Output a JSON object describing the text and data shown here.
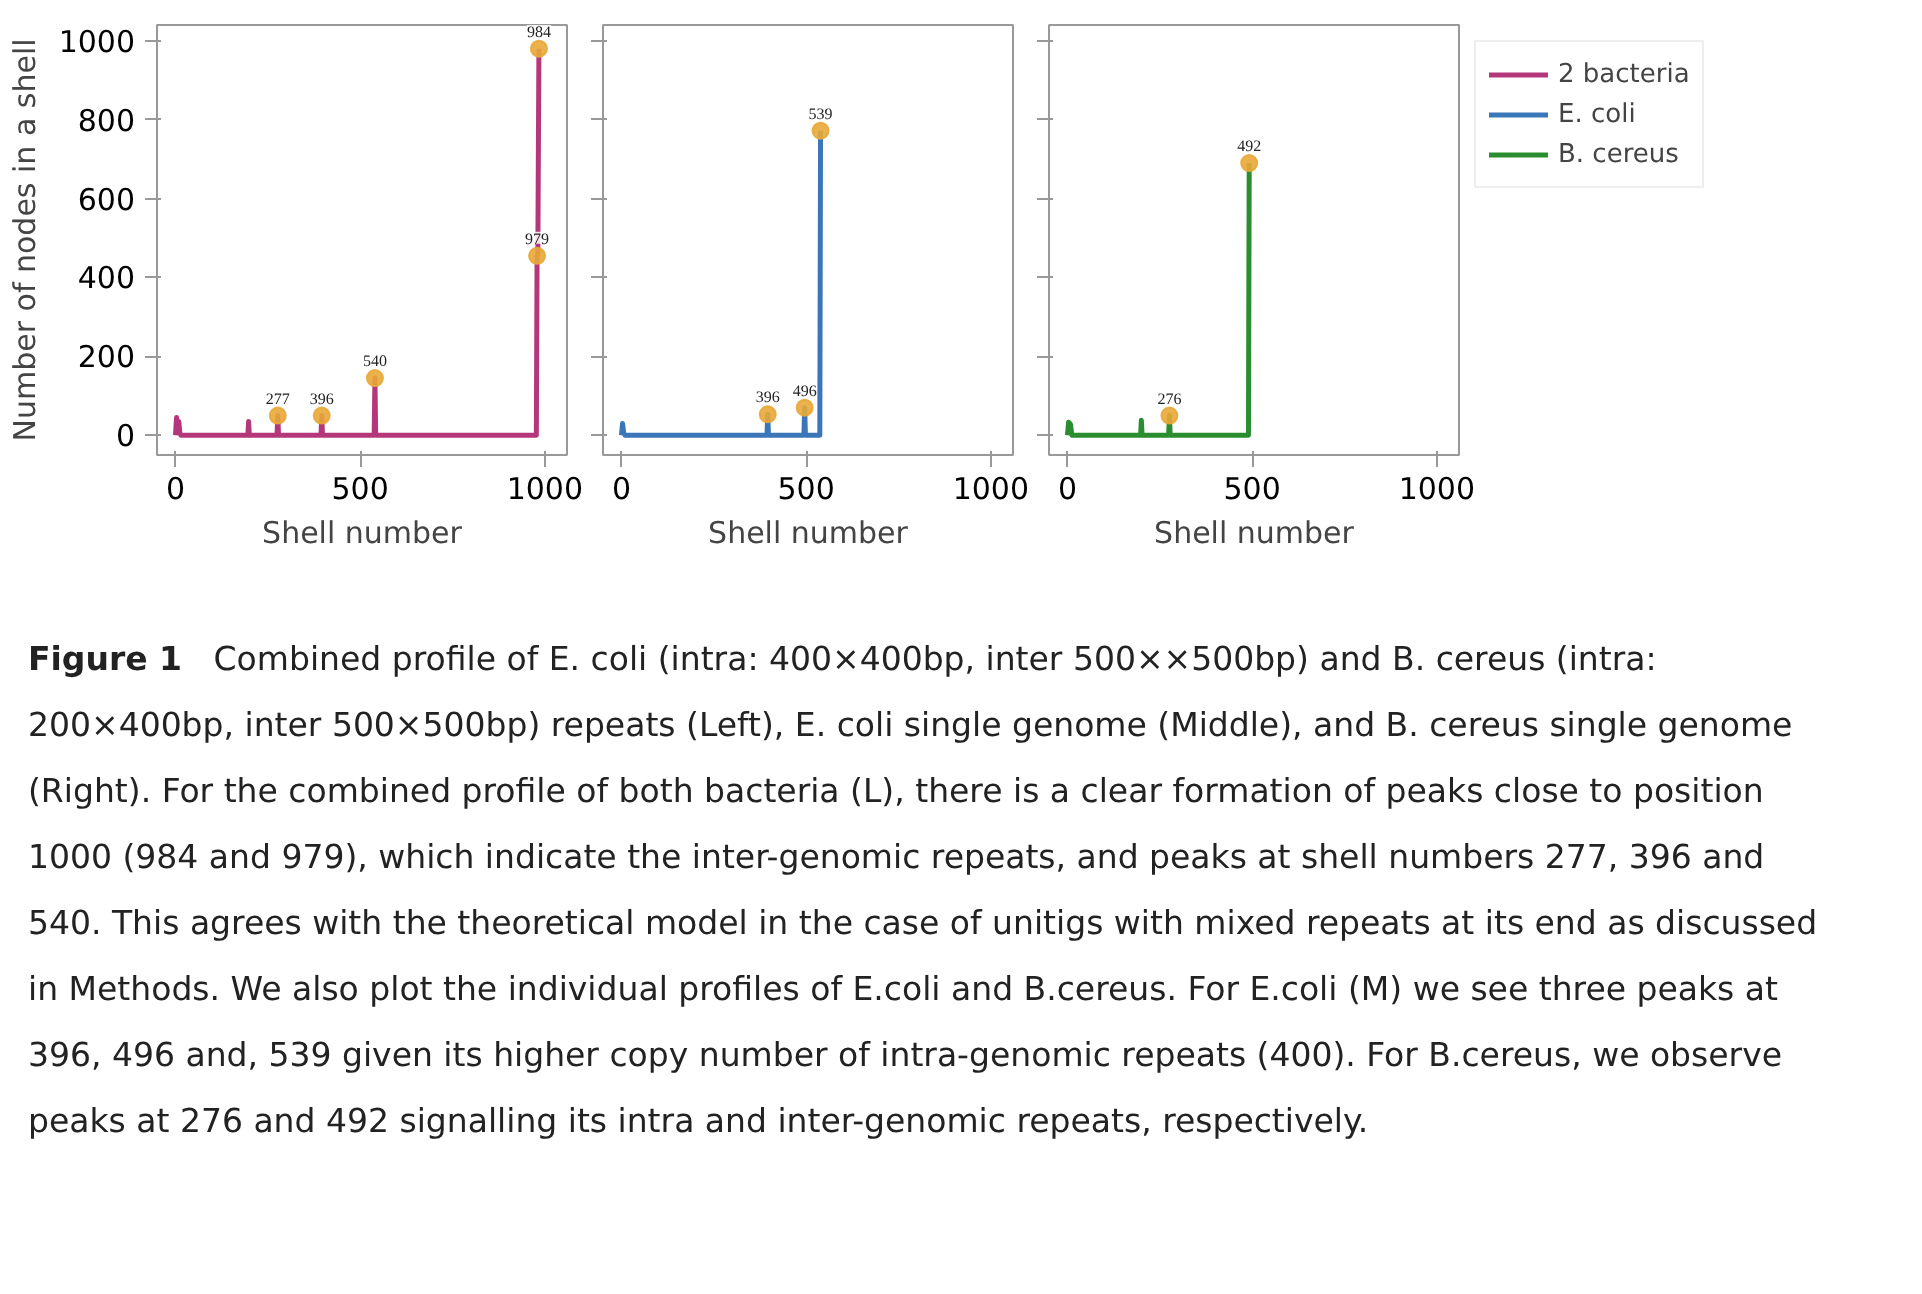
{
  "chart_data": [
    {
      "type": "line",
      "xlabel": "Shell number",
      "ylabel": "Number of nodes in a shell",
      "xlim": [
        -50,
        1060
      ],
      "ylim": [
        -50,
        1040
      ],
      "xticks": [
        0,
        500,
        1000
      ],
      "yticks": [
        0,
        200,
        400,
        600,
        800,
        1000
      ],
      "grid": false,
      "series": [
        {
          "name": "2 bacteria",
          "color": "#b5377b",
          "x": [
            0,
            3,
            6,
            9,
            12,
            15,
            196,
            198,
            200,
            275,
            277,
            279,
            394,
            396,
            398,
            538,
            540,
            542,
            977,
            979,
            981,
            984
          ],
          "values": [
            0,
            45,
            20,
            35,
            5,
            0,
            0,
            35,
            0,
            0,
            50,
            0,
            0,
            50,
            0,
            0,
            145,
            0,
            0,
            455,
            455,
            980
          ]
        }
      ],
      "annotations": [
        {
          "text": "277",
          "x": 277,
          "y": 50
        },
        {
          "text": "396",
          "x": 396,
          "y": 50
        },
        {
          "text": "540",
          "x": 540,
          "y": 145
        },
        {
          "text": "979",
          "x": 979,
          "y": 455
        },
        {
          "text": "984",
          "x": 984,
          "y": 980
        }
      ]
    },
    {
      "type": "line",
      "xlabel": "Shell number",
      "xlim": [
        -50,
        1060
      ],
      "ylim": [
        -50,
        1040
      ],
      "xticks": [
        0,
        500,
        1000
      ],
      "yticks": [
        0,
        200,
        400,
        600,
        800,
        1000
      ],
      "grid": false,
      "tick_labels": "x",
      "series": [
        {
          "name": "E. coli",
          "color": "#3a76b8",
          "x": [
            0,
            3,
            6,
            10,
            394,
            396,
            398,
            494,
            496,
            498,
            537,
            539
          ],
          "values": [
            0,
            30,
            5,
            0,
            0,
            53,
            0,
            0,
            70,
            0,
            0,
            772
          ]
        }
      ],
      "annotations": [
        {
          "text": "396",
          "x": 396,
          "y": 53
        },
        {
          "text": "496",
          "x": 496,
          "y": 70
        },
        {
          "text": "539",
          "x": 539,
          "y": 772
        }
      ]
    },
    {
      "type": "line",
      "xlabel": "Shell number",
      "xlim": [
        -50,
        1060
      ],
      "ylim": [
        -50,
        1040
      ],
      "xticks": [
        0,
        500,
        1000
      ],
      "yticks": [
        0,
        200,
        400,
        600,
        800,
        1000
      ],
      "grid": false,
      "tick_labels": "x",
      "legend": "right",
      "series": [
        {
          "name": "B. cereus",
          "color": "#2a8d2f",
          "x": [
            0,
            3,
            8,
            12,
            198,
            200,
            202,
            274,
            276,
            278,
            490,
            492
          ],
          "values": [
            0,
            33,
            28,
            0,
            0,
            38,
            0,
            0,
            50,
            0,
            0,
            690
          ]
        }
      ],
      "annotations": [
        {
          "text": "276",
          "x": 276,
          "y": 50
        },
        {
          "text": "492",
          "x": 492,
          "y": 690
        }
      ]
    },
    {
      "type": "other",
      "title": "Figure 1",
      "annotations": [
        "Combined profile of E. coli (intra: 400×400bp, inter 500××500bp) and B. cereus (intra: 200×400bp, inter 500×500bp) repeats (Left), E. coli single genome (Middle), and B. cereus single genome (Right). For the combined profile of both bacteria (L), there is a clear formation of peaks close to position 1000 (984 and 979), which indicate the inter-genomic repeats, and peaks at shell numbers 277, 396 and 540. This agrees with the theoretical model in the case of unitigs with mixed repeats at its end as discussed in Methods. We also plot the individual profiles of E.coli and B.cereus. For E.coli (M) we see three peaks at 396, 496 and, 539 given its higher copy number of intra-genomic repeats (400). For B.cereus, we observe peaks at 276 and 492 signalling its intra and inter-genomic repeats, respectively."
      ]
    }
  ]
}
